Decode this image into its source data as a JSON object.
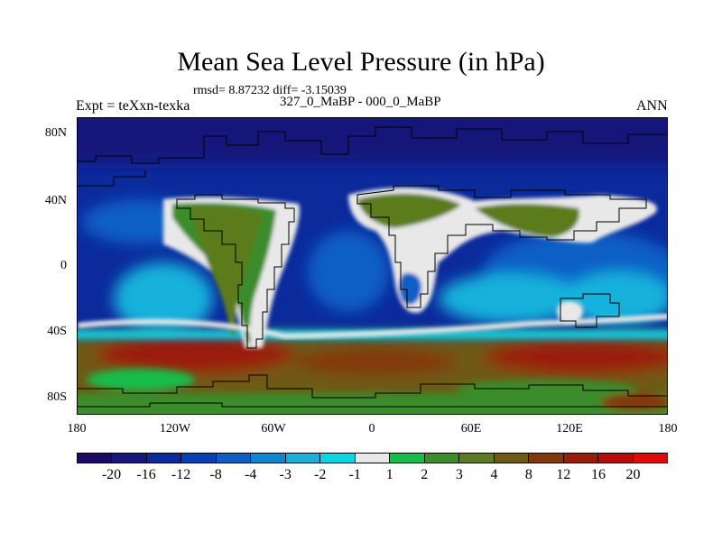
{
  "title": "Mean Sea Level Pressure (in hPa)",
  "stats_text": "rmsd= 8.87232 diff= -3.15039",
  "left_label": "Expt = teXxn-texka",
  "center_label": "327_0_MaBP - 000_0_MaBP",
  "right_label": "ANN",
  "lat_labels": [
    "80N",
    "40N",
    "0",
    "40S",
    "80S"
  ],
  "lon_labels": [
    "180",
    "120W",
    "60W",
    "0",
    "60E",
    "120E",
    "180"
  ],
  "colorbar": {
    "colors": [
      "#1d0a66",
      "#17167a",
      "#0b2a9c",
      "#0640b4",
      "#0e5ec6",
      "#0f86cf",
      "#19b1dc",
      "#0dd6e4",
      "#e8e8e8",
      "#17bd4b",
      "#3b8c2a",
      "#5c7b1e",
      "#6e5a14",
      "#83380c",
      "#9a1c0a",
      "#b80c0a",
      "#e10a0a"
    ],
    "labels": [
      "-20",
      "-16",
      "-12",
      "-8",
      "-4",
      "-3",
      "-2",
      "-1",
      "1",
      "2",
      "3",
      "4",
      "8",
      "12",
      "16",
      "20"
    ]
  },
  "field_colors": {
    "deep_low": "#17167a",
    "low": "#0b2a9c",
    "mid_low": "#0e5ec6",
    "light_low": "#19b1dc",
    "neutral": "#e8e8e8",
    "green": "#17bd4b",
    "olive": "#5c7b1e",
    "brown": "#83380c",
    "red": "#b80c0a"
  }
}
